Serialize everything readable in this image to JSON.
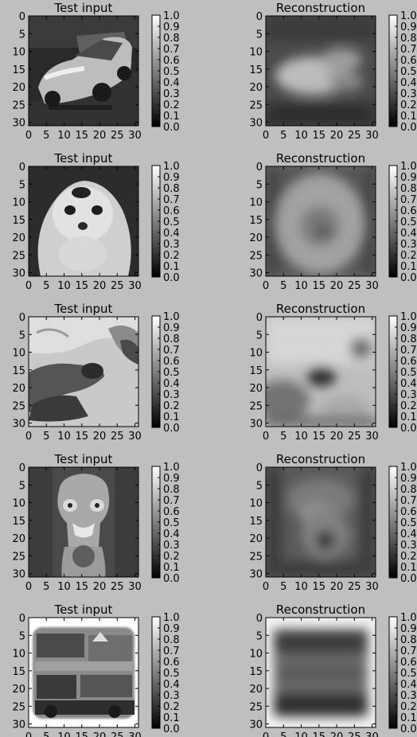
{
  "colorbar_ticks": [
    "0.0",
    "0.1",
    "0.2",
    "0.3",
    "0.4",
    "0.5",
    "0.6",
    "0.7",
    "0.8",
    "0.9",
    "1.0"
  ],
  "axis_ticks": [
    "0",
    "5",
    "10",
    "15",
    "20",
    "25",
    "30"
  ],
  "colors": {
    "figure_bg": "#bfbfbf",
    "axis": "#000000",
    "cmap_low": "#000000",
    "cmap_high": "#ffffff"
  },
  "panels": [
    {
      "title": "Test input",
      "row": 0,
      "col": 0,
      "subject": "car"
    },
    {
      "title": "Reconstruction",
      "row": 0,
      "col": 1,
      "subject": "car-blur"
    },
    {
      "title": "Test input",
      "row": 1,
      "col": 0,
      "subject": "dog"
    },
    {
      "title": "Reconstruction",
      "row": 1,
      "col": 1,
      "subject": "dog-blur"
    },
    {
      "title": "Test input",
      "row": 2,
      "col": 0,
      "subject": "frog"
    },
    {
      "title": "Reconstruction",
      "row": 2,
      "col": 1,
      "subject": "frog-blur"
    },
    {
      "title": "Test input",
      "row": 3,
      "col": 0,
      "subject": "ostrich"
    },
    {
      "title": "Reconstruction",
      "row": 3,
      "col": 1,
      "subject": "ostrich-blur"
    },
    {
      "title": "Test input",
      "row": 4,
      "col": 0,
      "subject": "truck"
    },
    {
      "title": "Reconstruction",
      "row": 4,
      "col": 1,
      "subject": "truck-blur"
    }
  ],
  "chart_data": [
    {
      "type": "heatmap",
      "title": "Test input",
      "xlim": [
        0,
        31
      ],
      "ylim": [
        31,
        0
      ],
      "colorbar_range": [
        0.0,
        1.0
      ],
      "cmap": "gray"
    },
    {
      "type": "heatmap",
      "title": "Reconstruction",
      "xlim": [
        0,
        31
      ],
      "ylim": [
        31,
        0
      ],
      "colorbar_range": [
        0.0,
        1.0
      ],
      "cmap": "gray"
    },
    {
      "type": "heatmap",
      "title": "Test input",
      "xlim": [
        0,
        31
      ],
      "ylim": [
        31,
        0
      ],
      "colorbar_range": [
        0.0,
        1.0
      ],
      "cmap": "gray"
    },
    {
      "type": "heatmap",
      "title": "Reconstruction",
      "xlim": [
        0,
        31
      ],
      "ylim": [
        31,
        0
      ],
      "colorbar_range": [
        0.0,
        1.0
      ],
      "cmap": "gray"
    },
    {
      "type": "heatmap",
      "title": "Test input",
      "xlim": [
        0,
        31
      ],
      "ylim": [
        31,
        0
      ],
      "colorbar_range": [
        0.0,
        1.0
      ],
      "cmap": "gray"
    },
    {
      "type": "heatmap",
      "title": "Reconstruction",
      "xlim": [
        0,
        31
      ],
      "ylim": [
        31,
        0
      ],
      "colorbar_range": [
        0.0,
        1.0
      ],
      "cmap": "gray"
    },
    {
      "type": "heatmap",
      "title": "Test input",
      "xlim": [
        0,
        31
      ],
      "ylim": [
        31,
        0
      ],
      "colorbar_range": [
        0.0,
        1.0
      ],
      "cmap": "gray"
    },
    {
      "type": "heatmap",
      "title": "Reconstruction",
      "xlim": [
        0,
        31
      ],
      "ylim": [
        31,
        0
      ],
      "colorbar_range": [
        0.0,
        1.0
      ],
      "cmap": "gray"
    },
    {
      "type": "heatmap",
      "title": "Test input",
      "xlim": [
        0,
        31
      ],
      "ylim": [
        31,
        0
      ],
      "colorbar_range": [
        0.0,
        1.0
      ],
      "cmap": "gray"
    },
    {
      "type": "heatmap",
      "title": "Reconstruction",
      "xlim": [
        0,
        31
      ],
      "ylim": [
        31,
        0
      ],
      "colorbar_range": [
        0.0,
        1.0
      ],
      "cmap": "gray"
    }
  ]
}
